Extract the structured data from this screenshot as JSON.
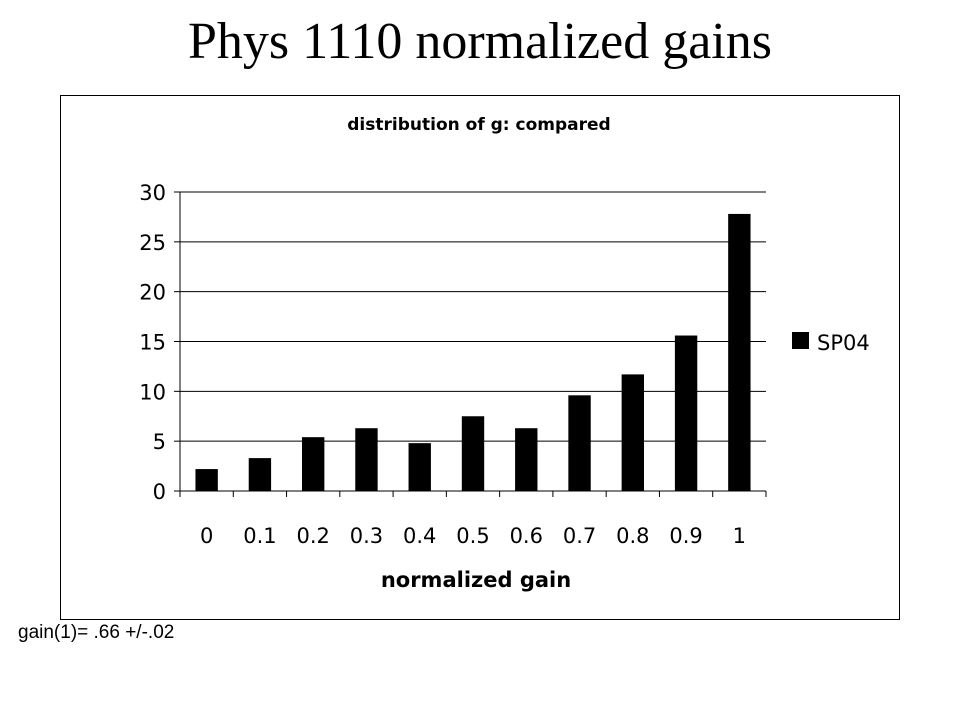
{
  "slide": {
    "title": "Phys 1110 normalized gains",
    "footnote": "gain(1)=  .66 +/-.02"
  },
  "chart_data": {
    "type": "bar",
    "title": "distribution of g: compared",
    "xlabel": "normalized gain",
    "ylabel": "",
    "categories": [
      "0",
      "0.1",
      "0.2",
      "0.3",
      "0.4",
      "0.5",
      "0.6",
      "0.7",
      "0.8",
      "0.9",
      "1"
    ],
    "series": [
      {
        "name": "SP04",
        "values": [
          2.2,
          3.3,
          5.4,
          6.3,
          4.8,
          7.5,
          6.3,
          9.6,
          11.7,
          15.6,
          27.8
        ]
      }
    ],
    "ylim": [
      0,
      30
    ],
    "yticks": [
      0,
      5,
      10,
      15,
      20,
      25,
      30
    ],
    "grid": true,
    "legend_position": "right",
    "colors": {
      "bar": "#000000",
      "grid": "#000000",
      "background": "#ffffff"
    }
  }
}
